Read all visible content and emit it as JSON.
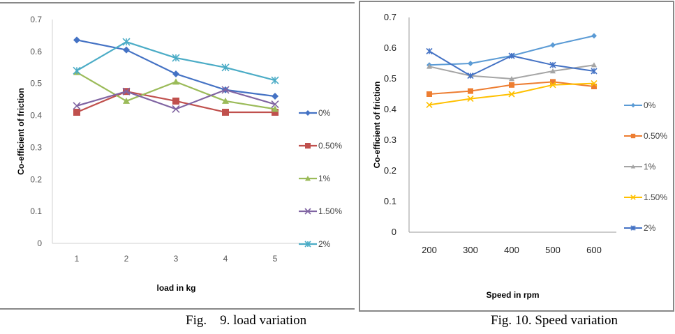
{
  "chart_data": [
    {
      "type": "line",
      "title": "",
      "caption": "Fig.    9. load variation",
      "xlabel": "load in kg",
      "ylabel": "Co-efficient of friction",
      "x": [
        1,
        2,
        3,
        4,
        5
      ],
      "x_tick_labels": [
        "1",
        "2",
        "3",
        "4",
        "5"
      ],
      "ylim": [
        0,
        0.7
      ],
      "y_ticks": [
        0,
        0.1,
        0.2,
        0.3,
        0.4,
        0.5,
        0.6,
        0.7
      ],
      "y_tick_labels": [
        "0",
        "0.1",
        "0.2",
        "0.3",
        "0.4",
        "0.5",
        "0.6",
        "0.7"
      ],
      "grid": false,
      "legend": "right",
      "series": [
        {
          "name": "0%",
          "color": "#4472C4",
          "marker": "diamond",
          "values": [
            0.636,
            0.605,
            0.53,
            0.48,
            0.46
          ]
        },
        {
          "name": "0.50%",
          "color": "#C0504D",
          "marker": "square",
          "values": [
            0.41,
            0.475,
            0.445,
            0.41,
            0.41
          ]
        },
        {
          "name": "1%",
          "color": "#9BBB59",
          "marker": "triangle",
          "values": [
            0.535,
            0.445,
            0.505,
            0.445,
            0.42
          ]
        },
        {
          "name": "1.50%",
          "color": "#8064A2",
          "marker": "x",
          "values": [
            0.43,
            0.475,
            0.42,
            0.48,
            0.435
          ]
        },
        {
          "name": "2%",
          "color": "#4BACC6",
          "marker": "star",
          "values": [
            0.54,
            0.63,
            0.58,
            0.55,
            0.51
          ]
        }
      ]
    },
    {
      "type": "line",
      "title": "",
      "caption": "Fig. 10. Speed variation",
      "xlabel": "Speed in rpm",
      "ylabel": "Co-efficient of friction",
      "x": [
        200,
        300,
        400,
        500,
        600
      ],
      "x_tick_labels": [
        "200",
        "300",
        "400",
        "500",
        "600"
      ],
      "ylim": [
        0,
        0.7
      ],
      "y_ticks": [
        0,
        0.1,
        0.2,
        0.3,
        0.4,
        0.5,
        0.6,
        0.7
      ],
      "y_tick_labels": [
        "0",
        "0.1",
        "0.2",
        "0.3",
        "0.4",
        "0.5",
        "0.6",
        "0.7"
      ],
      "grid": false,
      "legend": "right",
      "series": [
        {
          "name": "0%",
          "color": "#5B9BD5",
          "marker": "diamond",
          "values": [
            0.545,
            0.55,
            0.575,
            0.61,
            0.64
          ]
        },
        {
          "name": "0.50%",
          "color": "#ED7D31",
          "marker": "square",
          "values": [
            0.45,
            0.46,
            0.48,
            0.49,
            0.475
          ]
        },
        {
          "name": "1%",
          "color": "#A5A5A5",
          "marker": "triangle",
          "values": [
            0.54,
            0.51,
            0.5,
            0.525,
            0.545
          ]
        },
        {
          "name": "1.50%",
          "color": "#FFC000",
          "marker": "x",
          "values": [
            0.415,
            0.435,
            0.45,
            0.48,
            0.485
          ]
        },
        {
          "name": "2%",
          "color": "#4472C4",
          "marker": "star",
          "values": [
            0.59,
            0.51,
            0.575,
            0.545,
            0.525
          ]
        }
      ]
    }
  ]
}
